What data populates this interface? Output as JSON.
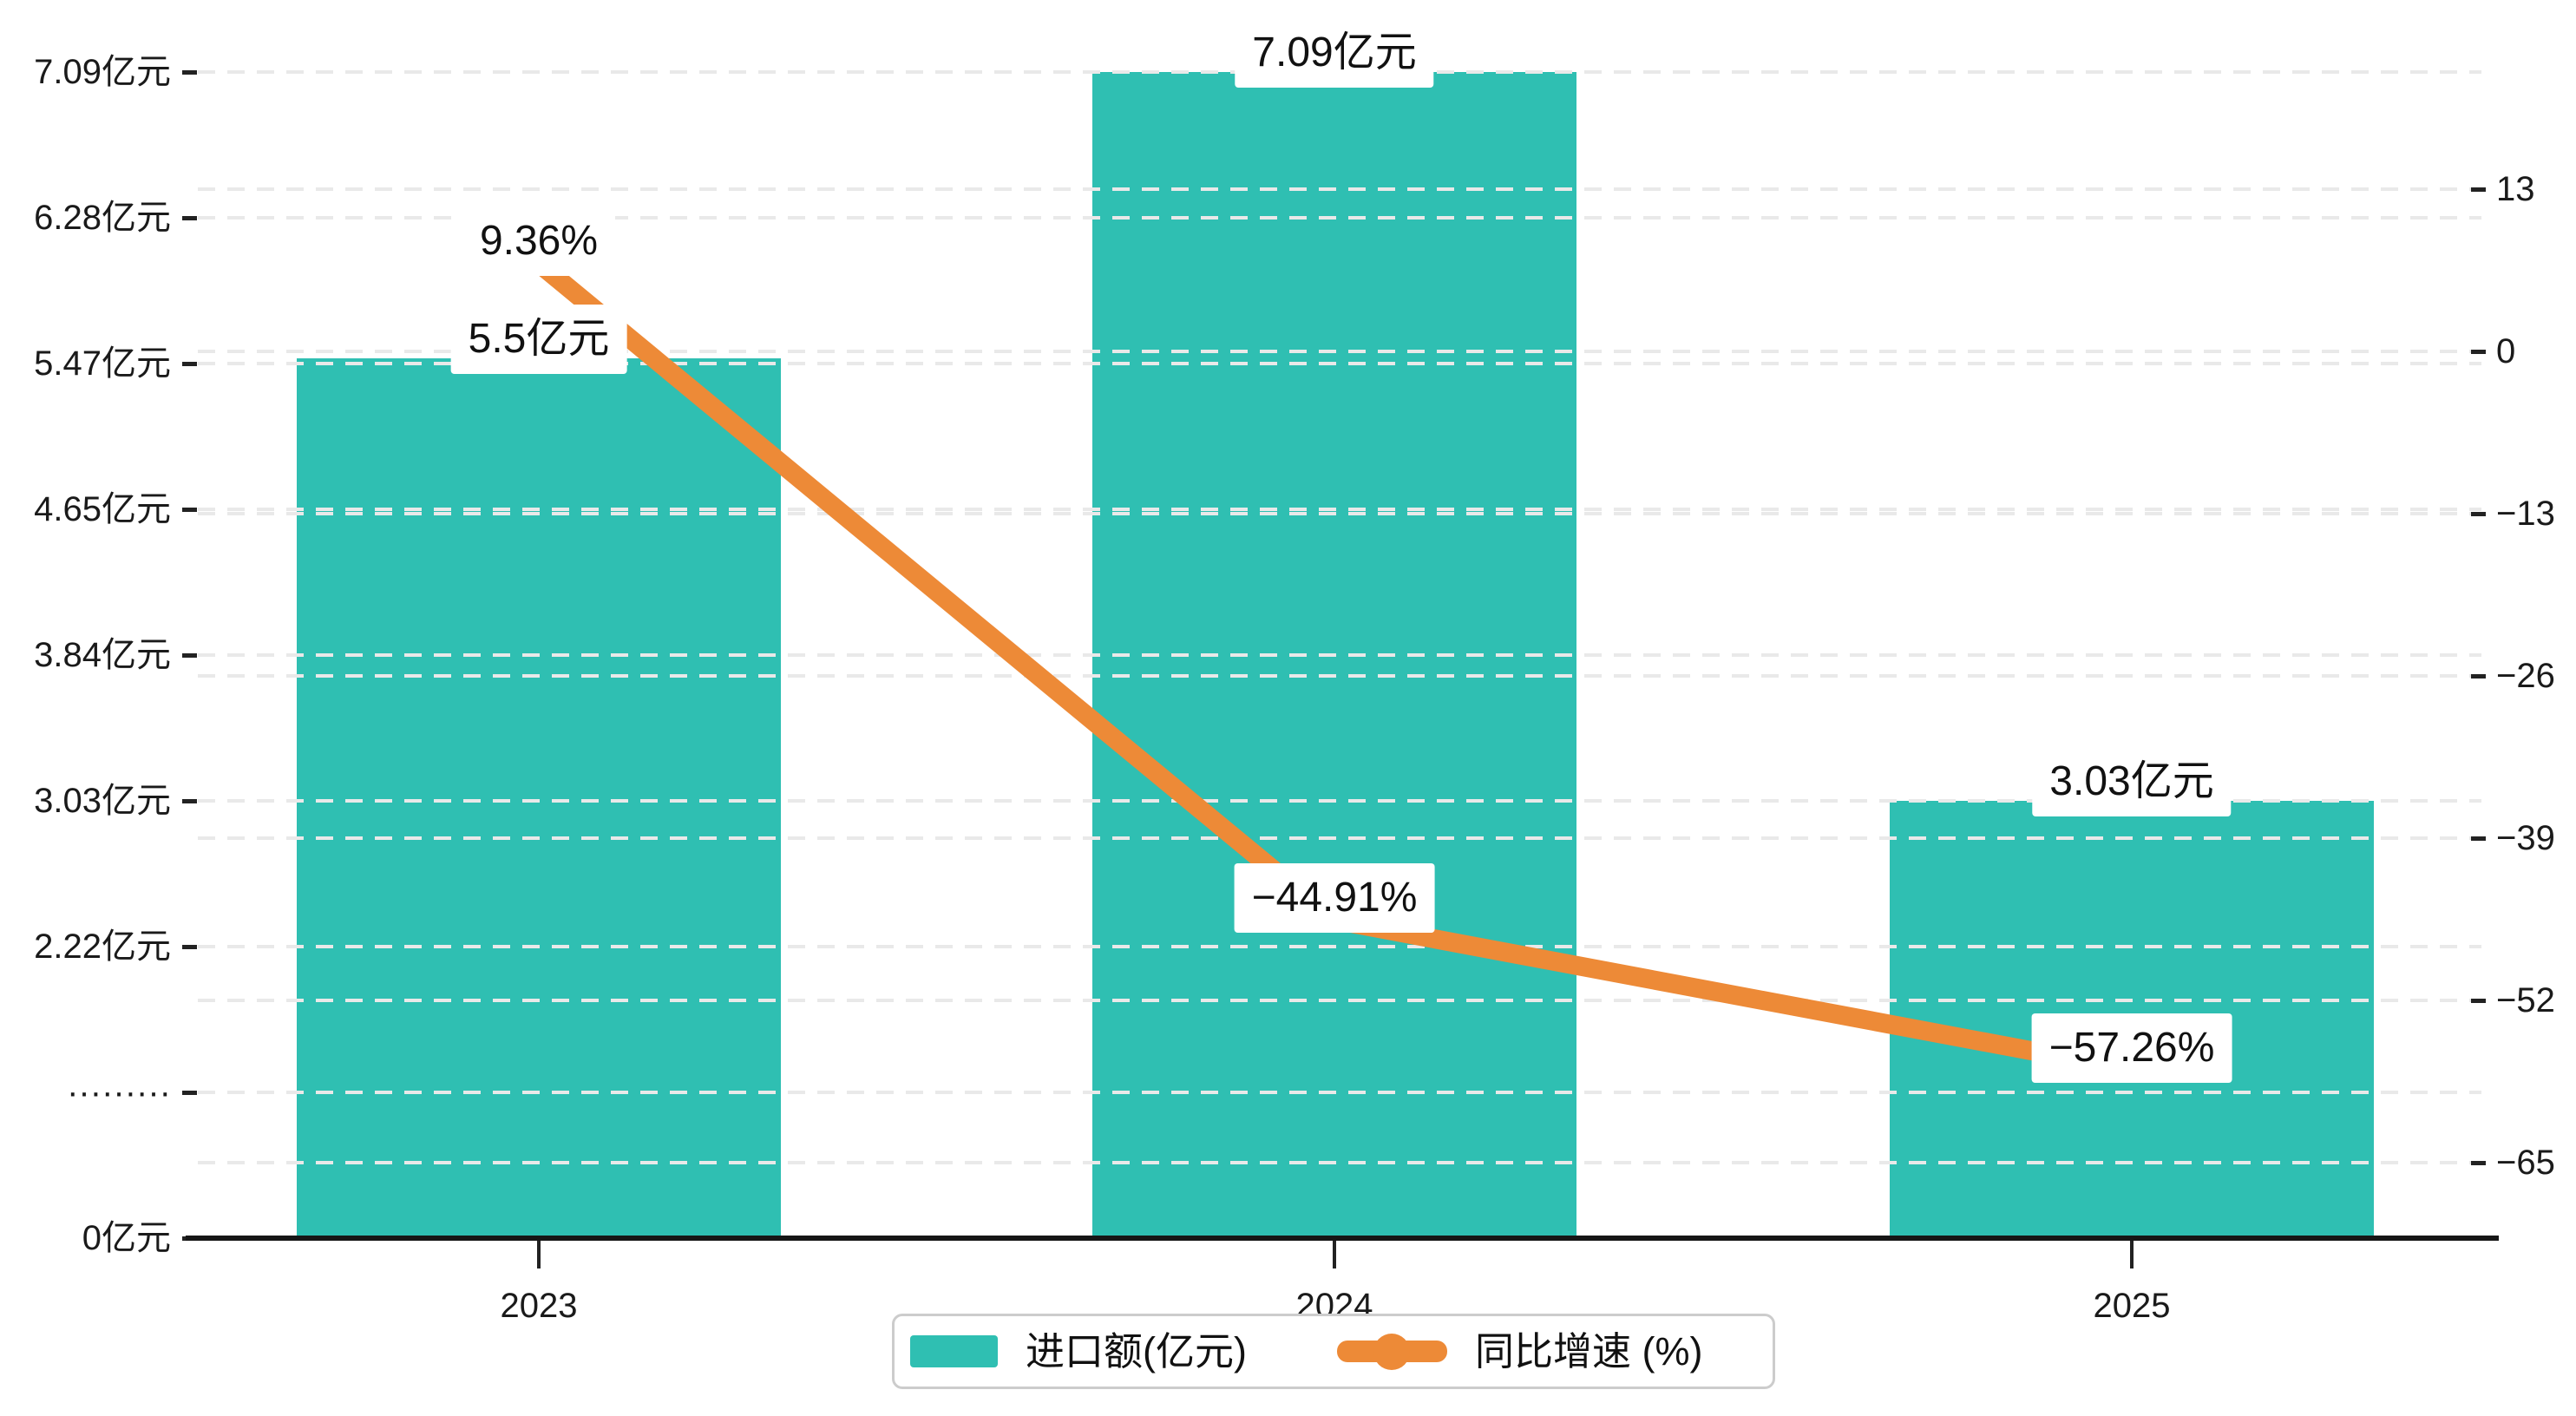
{
  "chart_data": {
    "type": "bar",
    "categories": [
      "2023",
      "2024",
      "2025"
    ],
    "series": [
      {
        "name": "进口额(亿元)",
        "type": "bar",
        "values": [
          5.5,
          7.09,
          3.03
        ],
        "labels": [
          "5.5亿元",
          "7.09亿元",
          "3.03亿元"
        ]
      },
      {
        "name": "同比增速 (%)",
        "type": "line",
        "values": [
          9.36,
          -44.91,
          -57.26
        ],
        "labels": [
          "9.36%",
          "−44.91%",
          "−57.26%"
        ]
      }
    ],
    "left_axis": {
      "tick_labels": [
        "0亿元",
        "·········",
        "2.22亿元",
        "3.03亿元",
        "3.84亿元",
        "4.65亿元",
        "5.47亿元",
        "6.28亿元",
        "7.09亿元"
      ],
      "tick_values": [
        0,
        1.41,
        2.22,
        3.03,
        3.84,
        4.65,
        5.47,
        6.28,
        7.09
      ]
    },
    "right_axis": {
      "tick_labels": [
        "13",
        "0",
        "−13",
        "−26",
        "−39",
        "−52",
        "−65"
      ],
      "tick_values": [
        13,
        0,
        -13,
        -26,
        -39,
        -52,
        -65
      ]
    },
    "legend_position": "bottom",
    "grid": true,
    "title": ""
  },
  "colors": {
    "bar": "#2fbfb2",
    "line": "#ed8a37",
    "grid": "#e9e9e9",
    "axis": "#161616",
    "text": "#1a1a1a",
    "label_bg": "#ffffff",
    "legend_border": "#cccccc"
  }
}
